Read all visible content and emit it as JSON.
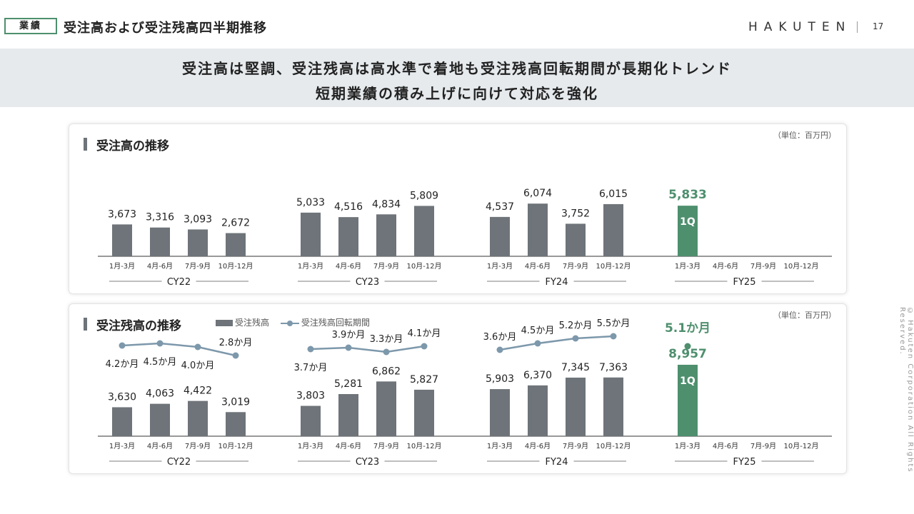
{
  "header": {
    "tag": "業績",
    "title": "受注高および受注残高四半期推移",
    "brand": "HAKUTEN",
    "page_number": "17"
  },
  "banner": {
    "line1": "受注高は堅調、受注残高は高水準で着地も受注残高回転期間が長期化トレンド",
    "line2": "短期業績の積み上げに向けて対応を強化"
  },
  "copyright": "© Hakuten Corporation All Rights Reserved.",
  "colors": {
    "bar": "#6e7479",
    "highlight": "#4e8f6e",
    "line": "#7d98ab"
  },
  "chart_data": [
    {
      "type": "bar",
      "title": "受注高の推移",
      "unit": "（単位：百万円）",
      "groups": [
        "CY22",
        "CY23",
        "FY24",
        "FY25"
      ],
      "categories": [
        "1月-3月",
        "4月-6月",
        "7月-9月",
        "10月-12月"
      ],
      "series": [
        {
          "values": [
            [
              3673,
              3316,
              3093,
              2672
            ],
            [
              5033,
              4516,
              4834,
              5809
            ],
            [
              4537,
              6074,
              3752,
              6015
            ],
            [
              5833,
              null,
              null,
              null
            ]
          ]
        }
      ],
      "value_labels": [
        [
          "3,673",
          "3,316",
          "3,093",
          "2,672"
        ],
        [
          "5,033",
          "4,516",
          "4,834",
          "5,809"
        ],
        [
          "4,537",
          "6,074",
          "3,752",
          "6,015"
        ],
        [
          "5,833",
          "",
          "",
          ""
        ]
      ],
      "highlight_label": "1Q"
    },
    {
      "type": "bar+line",
      "title": "受注残高の推移",
      "unit": "（単位：百万円）",
      "legend": [
        "受注残高",
        "受注残高回転期間"
      ],
      "groups": [
        "CY22",
        "CY23",
        "FY24",
        "FY25"
      ],
      "categories": [
        "1月-3月",
        "4月-6月",
        "7月-9月",
        "10月-12月"
      ],
      "series": [
        {
          "name": "受注残高",
          "values": [
            [
              3630,
              4063,
              4422,
              3019
            ],
            [
              3803,
              5281,
              6862,
              5827
            ],
            [
              5903,
              6370,
              7345,
              7363
            ],
            [
              8957,
              null,
              null,
              null
            ]
          ]
        },
        {
          "name": "受注残高回転期間",
          "values": [
            [
              4.2,
              4.5,
              4.0,
              2.8
            ],
            [
              3.7,
              3.9,
              3.3,
              4.1
            ],
            [
              3.6,
              4.5,
              5.2,
              5.5
            ],
            [
              5.1,
              null,
              null,
              null
            ]
          ]
        }
      ],
      "value_labels": [
        [
          "3,630",
          "4,063",
          "4,422",
          "3,019"
        ],
        [
          "3,803",
          "5,281",
          "6,862",
          "5,827"
        ],
        [
          "5,903",
          "6,370",
          "7,345",
          "7,363"
        ],
        [
          "8,957",
          "",
          "",
          ""
        ]
      ],
      "line_labels": [
        [
          "4.2か月",
          "4.5か月",
          "4.0か月",
          "2.8か月"
        ],
        [
          "3.7か月",
          "3.9か月",
          "3.3か月",
          "4.1か月"
        ],
        [
          "3.6か月",
          "4.5か月",
          "5.2か月",
          "5.5か月"
        ],
        [
          "5.1か月",
          "",
          "",
          ""
        ]
      ],
      "highlight_label": "1Q"
    }
  ]
}
